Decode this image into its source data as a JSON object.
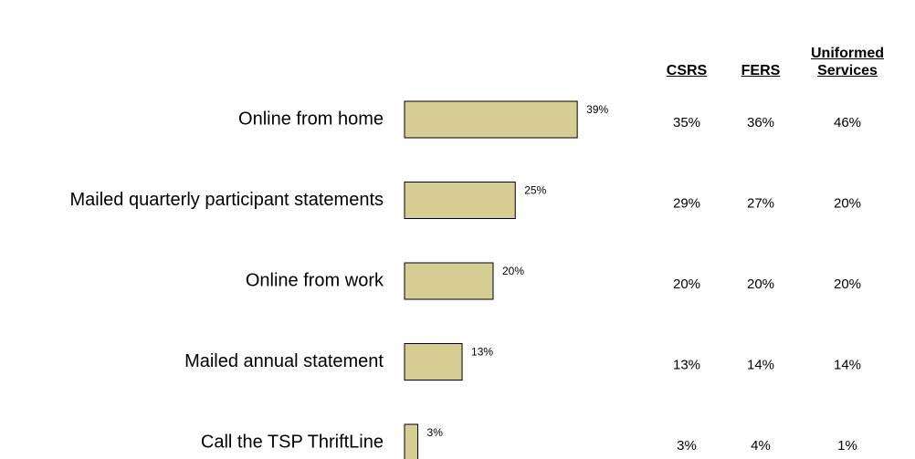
{
  "chart_data": {
    "type": "bar",
    "orientation": "horizontal",
    "categories": [
      "Online from home",
      "Mailed quarterly participant statements",
      "Online from work",
      "Mailed annual statement",
      "Call the TSP ThriftLine"
    ],
    "values": [
      39,
      25,
      20,
      13,
      3
    ],
    "value_labels": [
      "39%",
      "25%",
      "20%",
      "13%",
      "3%"
    ],
    "color": "#d6cd92",
    "xlim": [
      0,
      100
    ]
  },
  "table": {
    "headers": [
      "CSRS",
      "FERS",
      "Uniformed Services"
    ],
    "rows": [
      [
        "35%",
        "36%",
        "46%"
      ],
      [
        "29%",
        "27%",
        "20%"
      ],
      [
        "20%",
        "20%",
        "20%"
      ],
      [
        "13%",
        "14%",
        "14%"
      ],
      [
        "3%",
        "4%",
        "1%"
      ]
    ]
  }
}
